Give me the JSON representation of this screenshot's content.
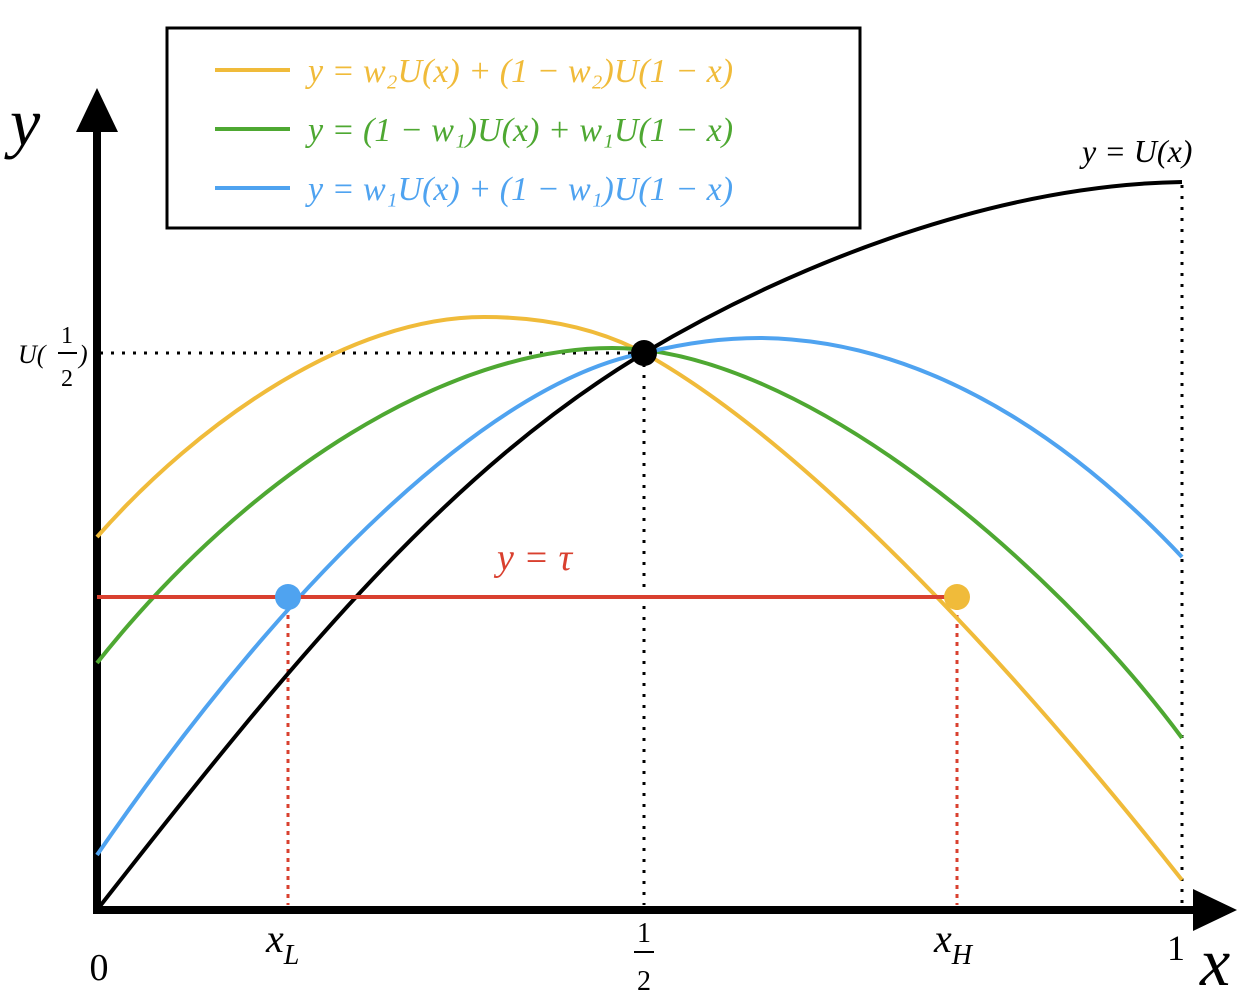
{
  "legend": [
    "y = w₂U(x) + (1 − w₂)U(1 − x)",
    "y = (1 − w₁)U(x) + w₁U(1 − x)",
    "y = w₁U(x) + (1 − w₁)U(1 − x)"
  ],
  "curve_label": "y = U(x)",
  "threshold_label": "y = τ",
  "axes": {
    "y": "y",
    "x": "x"
  },
  "y_marker": {
    "prefix": "U(",
    "numerator": "1",
    "denominator": "2",
    "suffix": ")"
  },
  "x_labels": {
    "origin": "0",
    "low": {
      "base": "x",
      "sub": "L"
    },
    "half": {
      "numerator": "1",
      "denominator": "2"
    },
    "high": {
      "base": "x",
      "sub": "H"
    },
    "one": "1"
  }
}
